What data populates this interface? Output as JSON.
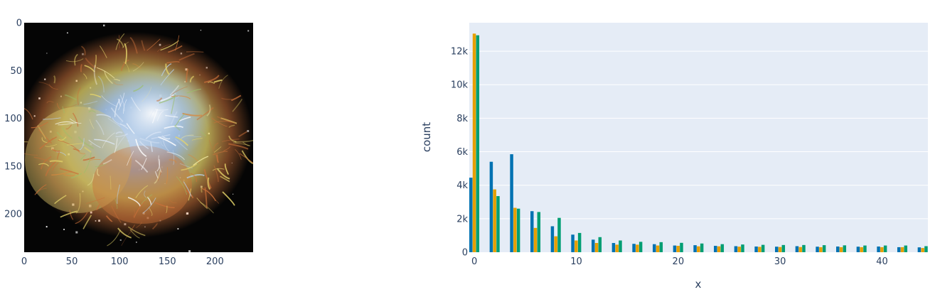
{
  "colors": {
    "plot_bg": "#e5ecf6",
    "grid": "#ffffff",
    "text": "#2a3f5f",
    "series_blue": "#0072b2",
    "series_orange": "#e69f00",
    "series_green": "#009e73",
    "space_bg": "#050505",
    "nebula_orange": "#c8703a",
    "nebula_yellow": "#e6d56a",
    "nebula_blue": "#9fbde0",
    "nebula_white": "#eef3fb"
  },
  "image_panel": {
    "image_name": "crab-nebula-image",
    "x_ticks": [
      "0",
      "50",
      "100",
      "150",
      "200"
    ],
    "y_ticks": [
      "0",
      "50",
      "100",
      "150",
      "200"
    ],
    "x_range": [
      0,
      240
    ],
    "y_range": [
      0,
      240
    ]
  },
  "chart_data": {
    "type": "bar",
    "barmode": "group",
    "xlabel": "x",
    "ylabel": "count",
    "xlim": [
      -0.5,
      44.5
    ],
    "ylim": [
      0,
      13700
    ],
    "x_ticks": [
      0,
      10,
      20,
      30,
      40
    ],
    "x_tick_labels": [
      "0",
      "10",
      "20",
      "30",
      "40"
    ],
    "y_ticks": [
      0,
      2000,
      4000,
      6000,
      8000,
      10000,
      12000
    ],
    "y_tick_labels": [
      "0",
      "2k",
      "4k",
      "6k",
      "8k",
      "10k",
      "12k"
    ],
    "grid": true,
    "legend": "none",
    "x": [
      0,
      1,
      2,
      3,
      4,
      5,
      6,
      7,
      8,
      9,
      10,
      11,
      12,
      13,
      14,
      15,
      16,
      17,
      18,
      19,
      20,
      21,
      22,
      23,
      24,
      25,
      26,
      27,
      28,
      29,
      30,
      31,
      32,
      33,
      34,
      35,
      36,
      37,
      38,
      39,
      40,
      41,
      42,
      43,
      44
    ],
    "series": [
      {
        "color": "#0072b2",
        "values": [
          4450,
          0,
          5400,
          0,
          5850,
          0,
          2450,
          0,
          1550,
          0,
          1050,
          0,
          750,
          0,
          550,
          0,
          500,
          0,
          480,
          0,
          400,
          0,
          420,
          0,
          380,
          0,
          360,
          0,
          340,
          0,
          330,
          0,
          360,
          0,
          330,
          0,
          340,
          0,
          330,
          0,
          340,
          0,
          300,
          0,
          290
        ]
      },
      {
        "color": "#e69f00",
        "values": [
          13050,
          0,
          3750,
          0,
          2650,
          0,
          1450,
          0,
          950,
          0,
          700,
          0,
          550,
          0,
          450,
          0,
          450,
          0,
          400,
          0,
          380,
          0,
          350,
          0,
          350,
          0,
          330,
          0,
          320,
          0,
          310,
          0,
          310,
          0,
          300,
          0,
          300,
          0,
          300,
          0,
          300,
          0,
          300,
          0,
          250
        ]
      },
      {
        "color": "#009e73",
        "values": [
          12950,
          0,
          3350,
          0,
          2600,
          0,
          2400,
          0,
          2050,
          0,
          1150,
          0,
          900,
          0,
          700,
          0,
          620,
          0,
          600,
          0,
          560,
          0,
          520,
          0,
          480,
          0,
          460,
          0,
          440,
          0,
          430,
          0,
          430,
          0,
          420,
          0,
          410,
          0,
          400,
          0,
          400,
          0,
          400,
          0,
          360
        ]
      }
    ]
  }
}
